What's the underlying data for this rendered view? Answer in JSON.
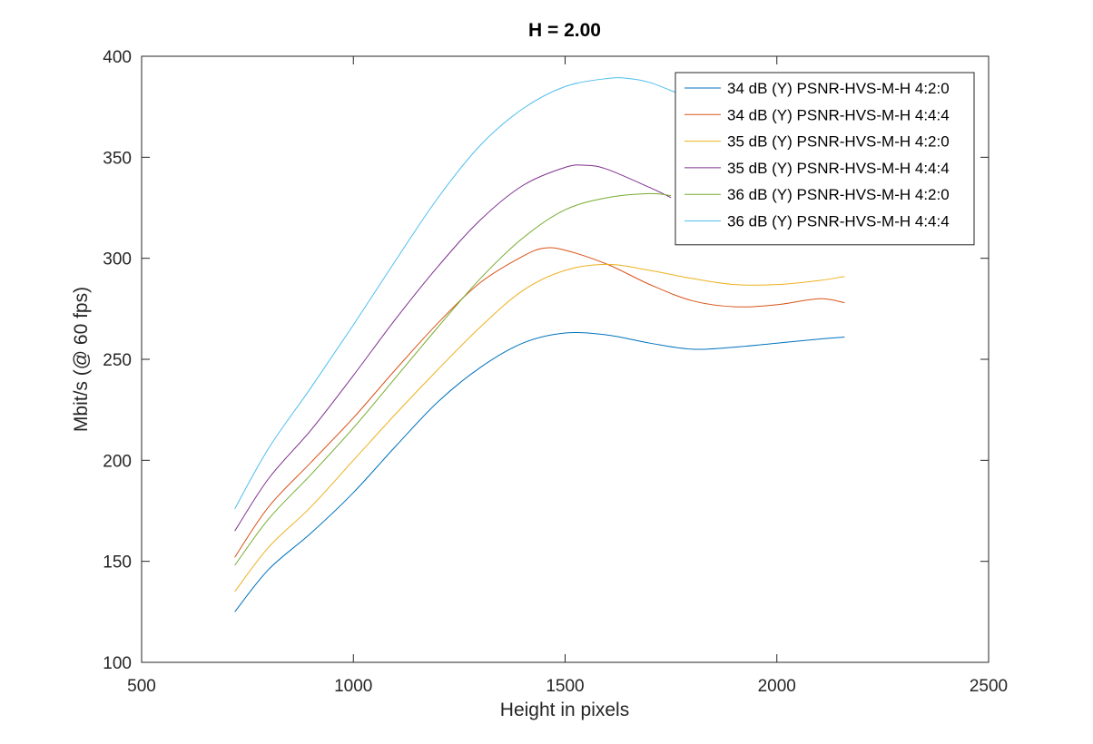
{
  "chart_data": {
    "type": "line",
    "title": "H = 2.00",
    "xlabel": "Height in pixels",
    "ylabel": "Mbit/s (@ 60 fps)",
    "xlim": [
      500,
      2500
    ],
    "ylim": [
      100,
      400
    ],
    "xticks": [
      500,
      1000,
      1500,
      2000,
      2500
    ],
    "yticks": [
      100,
      150,
      200,
      250,
      300,
      350,
      400
    ],
    "grid": false,
    "legend_position": "top-right",
    "series": [
      {
        "name": "34 dB (Y) PSNR-HVS-M-H 4:2:0",
        "color": "#0072BD",
        "x": [
          720,
          800,
          900,
          1000,
          1100,
          1200,
          1300,
          1400,
          1500,
          1600,
          1700,
          1800,
          1900,
          2000,
          2100,
          2160
        ],
        "y": [
          125,
          146,
          164,
          184,
          207,
          229,
          246,
          258,
          263,
          262,
          258,
          255,
          256,
          258,
          260,
          261
        ]
      },
      {
        "name": "34 dB (Y) PSNR-HVS-M-H 4:4:4",
        "color": "#D95319",
        "x": [
          720,
          800,
          900,
          1000,
          1100,
          1200,
          1300,
          1400,
          1450,
          1500,
          1600,
          1700,
          1800,
          1900,
          2000,
          2100,
          2160
        ],
        "y": [
          152,
          177,
          199,
          221,
          245,
          268,
          288,
          301,
          305,
          304,
          297,
          287,
          279,
          276,
          277,
          280,
          278
        ]
      },
      {
        "name": "35 dB (Y) PSNR-HVS-M-H 4:2:0",
        "color": "#EDB120",
        "x": [
          720,
          800,
          900,
          1000,
          1100,
          1200,
          1300,
          1400,
          1500,
          1600,
          1700,
          1800,
          1900,
          2000,
          2100,
          2160
        ],
        "y": [
          135,
          157,
          177,
          200,
          223,
          245,
          266,
          284,
          294,
          297,
          294,
          290,
          287,
          287,
          289,
          291
        ]
      },
      {
        "name": "35 dB (Y) PSNR-HVS-M-H 4:4:4",
        "color": "#7E2F8E",
        "x": [
          720,
          800,
          900,
          1000,
          1100,
          1200,
          1300,
          1400,
          1500,
          1550,
          1600,
          1700,
          1750
        ],
        "y": [
          165,
          191,
          215,
          242,
          270,
          296,
          319,
          336,
          345,
          346,
          344,
          335,
          330
        ]
      },
      {
        "name": "36 dB (Y) PSNR-HVS-M-H 4:2:0",
        "color": "#77AC30",
        "x": [
          720,
          800,
          900,
          1000,
          1100,
          1200,
          1300,
          1400,
          1500,
          1600,
          1700,
          1750
        ],
        "y": [
          148,
          171,
          193,
          216,
          241,
          266,
          290,
          310,
          324,
          330,
          332,
          331
        ]
      },
      {
        "name": "36 dB (Y) PSNR-HVS-M-H 4:4:4",
        "color": "#4DBEEE",
        "x": [
          720,
          800,
          900,
          1000,
          1100,
          1200,
          1300,
          1400,
          1500,
          1600,
          1650,
          1700,
          1750,
          1800
        ],
        "y": [
          176,
          206,
          236,
          267,
          299,
          330,
          356,
          374,
          385,
          389,
          389,
          387,
          383,
          379
        ]
      }
    ]
  }
}
